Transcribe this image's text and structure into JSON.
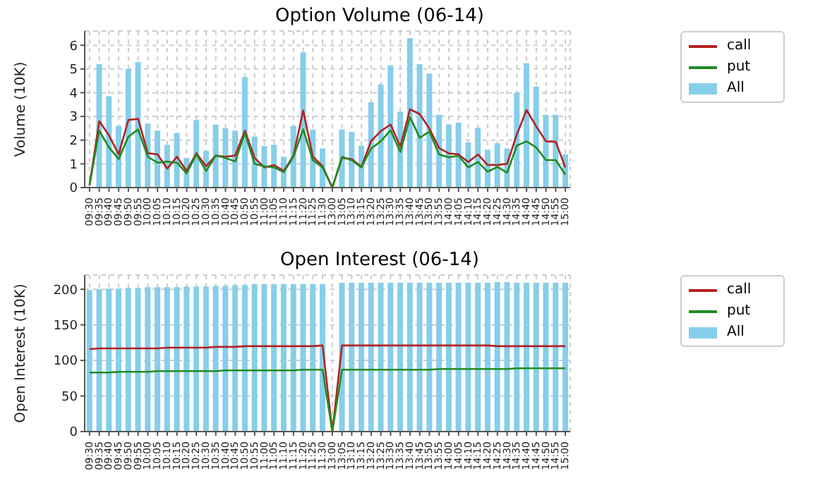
{
  "chart_data": [
    {
      "type": "bar",
      "title": "Option Volume (06-14)",
      "ylabel": "Volume (10K)",
      "categories": [
        "09:30",
        "09:35",
        "09:40",
        "09:45",
        "09:50",
        "09:55",
        "10:00",
        "10:05",
        "10:10",
        "10:15",
        "10:20",
        "10:25",
        "10:30",
        "10:35",
        "10:40",
        "10:45",
        "10:50",
        "10:55",
        "11:00",
        "11:05",
        "11:10",
        "11:15",
        "11:20",
        "11:25",
        "11:30",
        "13:00",
        "13:05",
        "13:10",
        "13:15",
        "13:20",
        "13:25",
        "13:30",
        "13:35",
        "13:40",
        "13:45",
        "13:50",
        "13:55",
        "14:00",
        "14:05",
        "14:10",
        "14:15",
        "14:20",
        "14:25",
        "14:30",
        "14:35",
        "14:40",
        "14:45",
        "14:50",
        "14:55",
        "15:00"
      ],
      "series": [
        {
          "name": "call",
          "type": "line",
          "color": "#b22222",
          "values": [
            0.1,
            2.8,
            2.2,
            1.4,
            2.85,
            2.9,
            1.45,
            1.4,
            0.8,
            1.3,
            0.7,
            1.45,
            0.9,
            1.35,
            1.3,
            1.35,
            2.4,
            1.25,
            0.85,
            0.95,
            0.7,
            1.35,
            3.25,
            1.3,
            0.9,
            0,
            1.25,
            1.2,
            0.87,
            1.97,
            2.38,
            2.66,
            1.73,
            3.3,
            3.1,
            2.48,
            1.67,
            1.44,
            1.4,
            1.08,
            1.4,
            0.95,
            0.95,
            1.0,
            2.24,
            3.27,
            2.58,
            1.95,
            1.93,
            0.85
          ]
        },
        {
          "name": "put",
          "type": "line",
          "color": "#228b22",
          "values": [
            0.1,
            2.4,
            1.7,
            1.2,
            2.15,
            2.45,
            1.3,
            1.05,
            1.1,
            1.05,
            0.6,
            1.4,
            0.7,
            1.35,
            1.25,
            1.1,
            2.3,
            1.0,
            0.9,
            0.85,
            0.65,
            1.3,
            2.45,
            1.15,
            0.85,
            0,
            1.3,
            1.15,
            0.85,
            1.65,
            1.95,
            2.42,
            1.5,
            2.97,
            2.1,
            2.36,
            1.4,
            1.28,
            1.34,
            0.85,
            1.08,
            0.67,
            0.87,
            0.63,
            1.77,
            1.95,
            1.69,
            1.16,
            1.16,
            0.55
          ]
        },
        {
          "name": "All",
          "color": "#87ceeb",
          "values": [
            0,
            5.2,
            3.85,
            2.6,
            5.0,
            5.3,
            2.7,
            2.4,
            1.8,
            2.3,
            1.25,
            2.85,
            1.55,
            2.65,
            2.5,
            2.4,
            4.65,
            2.15,
            1.75,
            1.8,
            1.3,
            2.6,
            5.7,
            2.45,
            1.65,
            0,
            2.45,
            2.35,
            1.77,
            3.6,
            4.35,
            5.15,
            3.2,
            6.3,
            5.2,
            4.8,
            3.07,
            2.66,
            2.74,
            1.9,
            2.52,
            1.6,
            1.87,
            1.65,
            4.0,
            5.25,
            4.25,
            3.07,
            3.07,
            1.4
          ]
        }
      ],
      "ylim": [
        0,
        6.6
      ],
      "yticks": [
        0,
        1,
        2,
        3,
        4,
        5,
        6
      ],
      "grid": true,
      "legend": "right"
    },
    {
      "type": "bar",
      "title": "Open Interest (06-14)",
      "ylabel": "Open Interest (10K)",
      "categories": [
        "09:30",
        "09:35",
        "09:40",
        "09:45",
        "09:50",
        "09:55",
        "10:00",
        "10:05",
        "10:10",
        "10:15",
        "10:20",
        "10:25",
        "10:30",
        "10:35",
        "10:40",
        "10:45",
        "10:50",
        "10:55",
        "11:00",
        "11:05",
        "11:10",
        "11:15",
        "11:20",
        "11:25",
        "11:30",
        "13:00",
        "13:05",
        "13:10",
        "13:15",
        "13:20",
        "13:25",
        "13:30",
        "13:35",
        "13:40",
        "13:45",
        "13:50",
        "13:55",
        "14:00",
        "14:05",
        "14:10",
        "14:15",
        "14:20",
        "14:25",
        "14:30",
        "14:35",
        "14:40",
        "14:45",
        "14:50",
        "14:55",
        "15:00"
      ],
      "series": [
        {
          "name": "call",
          "type": "line",
          "color": "#b22222",
          "values": [
            116,
            117,
            117,
            117,
            117,
            117,
            117,
            117,
            118,
            118,
            118,
            118,
            118,
            119,
            119,
            119,
            120,
            120,
            120,
            120,
            120,
            120,
            120,
            120,
            121,
            0,
            121,
            121,
            121,
            121,
            121,
            121,
            121,
            121,
            121,
            121,
            121,
            121,
            121,
            121,
            121,
            121,
            120,
            120,
            120,
            120,
            120,
            120,
            120,
            120
          ]
        },
        {
          "name": "put",
          "type": "line",
          "color": "#228b22",
          "values": [
            83,
            83,
            83,
            84,
            84,
            84,
            84,
            85,
            85,
            85,
            85,
            85,
            85,
            85,
            86,
            86,
            86,
            86,
            86,
            86,
            86,
            86,
            87,
            87,
            87,
            0,
            87,
            87,
            87,
            87,
            87,
            87,
            87,
            87,
            87,
            87,
            88,
            88,
            88,
            88,
            88,
            88,
            88,
            88,
            89,
            89,
            89,
            89,
            89,
            89
          ]
        },
        {
          "name": "All",
          "color": "#87ceeb",
          "values": [
            199,
            200,
            201,
            201,
            202,
            202,
            203,
            203,
            203,
            203,
            204,
            204,
            204,
            205,
            205,
            206,
            206,
            207,
            207,
            207,
            207,
            207,
            207,
            207,
            207,
            0,
            209,
            209,
            209,
            209,
            209,
            209,
            209,
            209,
            209,
            209,
            209,
            209,
            209,
            209,
            209,
            209,
            210,
            210,
            209,
            209,
            209,
            209,
            209,
            209
          ]
        }
      ],
      "ylim": [
        0,
        220
      ],
      "yticks": [
        0,
        50,
        100,
        150,
        200
      ],
      "grid": true,
      "legend": "right"
    }
  ]
}
